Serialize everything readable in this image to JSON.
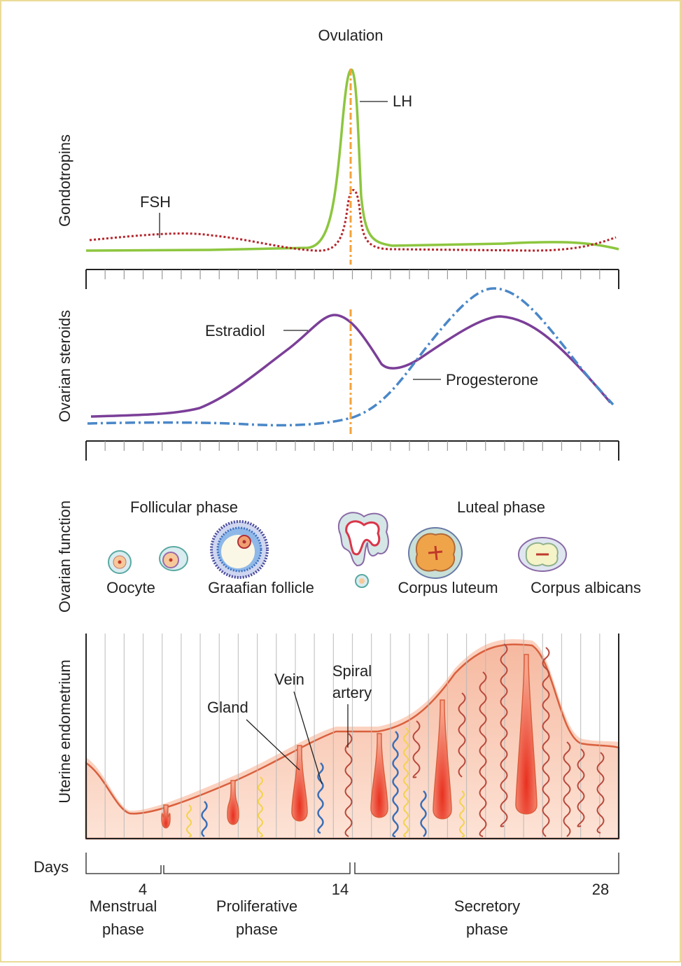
{
  "hormones": {
    "ovulation": "Ovulation",
    "lh": "LH",
    "fsh": "FSH",
    "gonadotropins_label": "Gondotropins",
    "steroids_label": "Ovarian steroids",
    "estradiol": "Estradiol",
    "progesterone": "Progesterone"
  },
  "ovarian_function": {
    "label": "Ovarian function",
    "follicular_phase": "Follicular phase",
    "luteal_phase": "Luteal phase",
    "oocyte": "Oocyte",
    "graafian_follicle": "Graafian follicle",
    "corpus_luteum": "Corpus luteum",
    "corpus_albicans": "Corpus albicans"
  },
  "endometrium": {
    "label": "Uterine endometrium",
    "gland": "Gland",
    "vein": "Vein",
    "spiral_artery": [
      "Spiral",
      "artery"
    ]
  },
  "days": {
    "label": "Days",
    "marks": [
      4,
      14,
      28
    ],
    "phases": [
      [
        "Menstrual",
        "phase"
      ],
      [
        "Proliferative",
        "phase"
      ],
      [
        "Secretory",
        "phase"
      ]
    ]
  }
}
